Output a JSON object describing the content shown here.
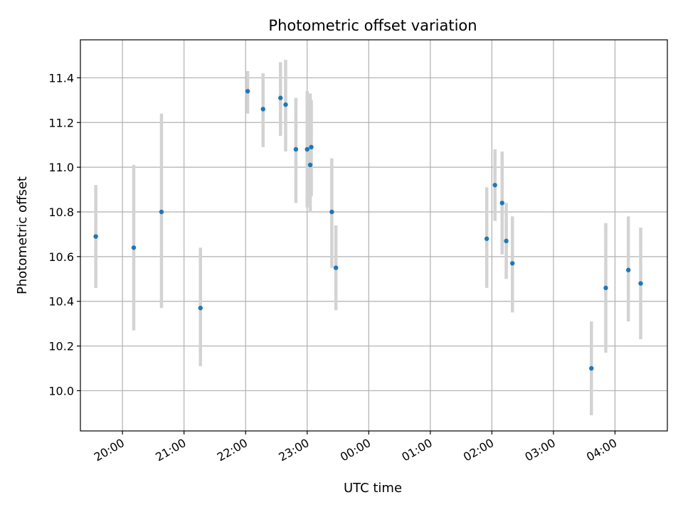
{
  "chart_data": {
    "type": "scatter",
    "title": "Photometric offset variation",
    "xlabel": "UTC time",
    "ylabel": "Photometric offset",
    "xlim": [
      "2023-01-01T19:19",
      "2023-01-02T04:51"
    ],
    "ylim": [
      9.82,
      11.57
    ],
    "x_ticks": [
      {
        "value": "2023-01-01T20:00",
        "label": "20:00"
      },
      {
        "value": "2023-01-01T21:00",
        "label": "21:00"
      },
      {
        "value": "2023-01-01T22:00",
        "label": "22:00"
      },
      {
        "value": "2023-01-01T23:00",
        "label": "23:00"
      },
      {
        "value": "2023-01-02T00:00",
        "label": "00:00"
      },
      {
        "value": "2023-01-02T01:00",
        "label": "01:00"
      },
      {
        "value": "2023-01-02T02:00",
        "label": "02:00"
      },
      {
        "value": "2023-01-02T03:00",
        "label": "03:00"
      },
      {
        "value": "2023-01-02T04:00",
        "label": "04:00"
      }
    ],
    "y_ticks": [
      {
        "value": 10.0,
        "label": "10.0"
      },
      {
        "value": 10.2,
        "label": "10.2"
      },
      {
        "value": 10.4,
        "label": "10.4"
      },
      {
        "value": 10.6,
        "label": "10.6"
      },
      {
        "value": 10.8,
        "label": "10.8"
      },
      {
        "value": 11.0,
        "label": "11.0"
      },
      {
        "value": 11.2,
        "label": "11.2"
      },
      {
        "value": 11.4,
        "label": "11.4"
      }
    ],
    "grid": true,
    "point_color": "#1f77b4",
    "errorbar_color": "#d3d3d3",
    "points": [
      {
        "x": "2023-01-01T19:34",
        "y": 10.69,
        "ylow": 10.46,
        "yhigh": 10.92
      },
      {
        "x": "2023-01-01T20:11",
        "y": 10.64,
        "ylow": 10.27,
        "yhigh": 11.01
      },
      {
        "x": "2023-01-01T20:38",
        "y": 10.8,
        "ylow": 10.37,
        "yhigh": 11.24
      },
      {
        "x": "2023-01-01T21:16",
        "y": 10.37,
        "ylow": 10.11,
        "yhigh": 10.64
      },
      {
        "x": "2023-01-01T22:02",
        "y": 11.34,
        "ylow": 11.24,
        "yhigh": 11.43
      },
      {
        "x": "2023-01-01T22:17",
        "y": 11.26,
        "ylow": 11.09,
        "yhigh": 11.42
      },
      {
        "x": "2023-01-01T22:34",
        "y": 11.31,
        "ylow": 11.14,
        "yhigh": 11.47
      },
      {
        "x": "2023-01-01T22:39",
        "y": 11.28,
        "ylow": 11.07,
        "yhigh": 11.48
      },
      {
        "x": "2023-01-01T22:49",
        "y": 11.08,
        "ylow": 10.84,
        "yhigh": 11.31
      },
      {
        "x": "2023-01-01T23:00",
        "y": 11.08,
        "ylow": 10.82,
        "yhigh": 11.34
      },
      {
        "x": "2023-01-01T23:03",
        "y": 11.01,
        "ylow": 10.8,
        "yhigh": 11.33
      },
      {
        "x": "2023-01-01T23:04",
        "y": 11.09,
        "ylow": 10.87,
        "yhigh": 11.3
      },
      {
        "x": "2023-01-01T23:24",
        "y": 10.8,
        "ylow": 10.55,
        "yhigh": 11.04
      },
      {
        "x": "2023-01-01T23:28",
        "y": 10.55,
        "ylow": 10.36,
        "yhigh": 10.74
      },
      {
        "x": "2023-01-02T01:55",
        "y": 10.68,
        "ylow": 10.46,
        "yhigh": 10.91
      },
      {
        "x": "2023-01-02T02:03",
        "y": 10.92,
        "ylow": 10.76,
        "yhigh": 11.08
      },
      {
        "x": "2023-01-02T02:10",
        "y": 10.84,
        "ylow": 10.61,
        "yhigh": 11.07
      },
      {
        "x": "2023-01-02T02:14",
        "y": 10.67,
        "ylow": 10.5,
        "yhigh": 10.84
      },
      {
        "x": "2023-01-02T02:20",
        "y": 10.57,
        "ylow": 10.35,
        "yhigh": 10.78
      },
      {
        "x": "2023-01-02T03:37",
        "y": 10.1,
        "ylow": 9.89,
        "yhigh": 10.31
      },
      {
        "x": "2023-01-02T03:51",
        "y": 10.46,
        "ylow": 10.17,
        "yhigh": 10.75
      },
      {
        "x": "2023-01-02T04:13",
        "y": 10.54,
        "ylow": 10.31,
        "yhigh": 10.78
      },
      {
        "x": "2023-01-02T04:25",
        "y": 10.48,
        "ylow": 10.23,
        "yhigh": 10.73
      }
    ]
  }
}
